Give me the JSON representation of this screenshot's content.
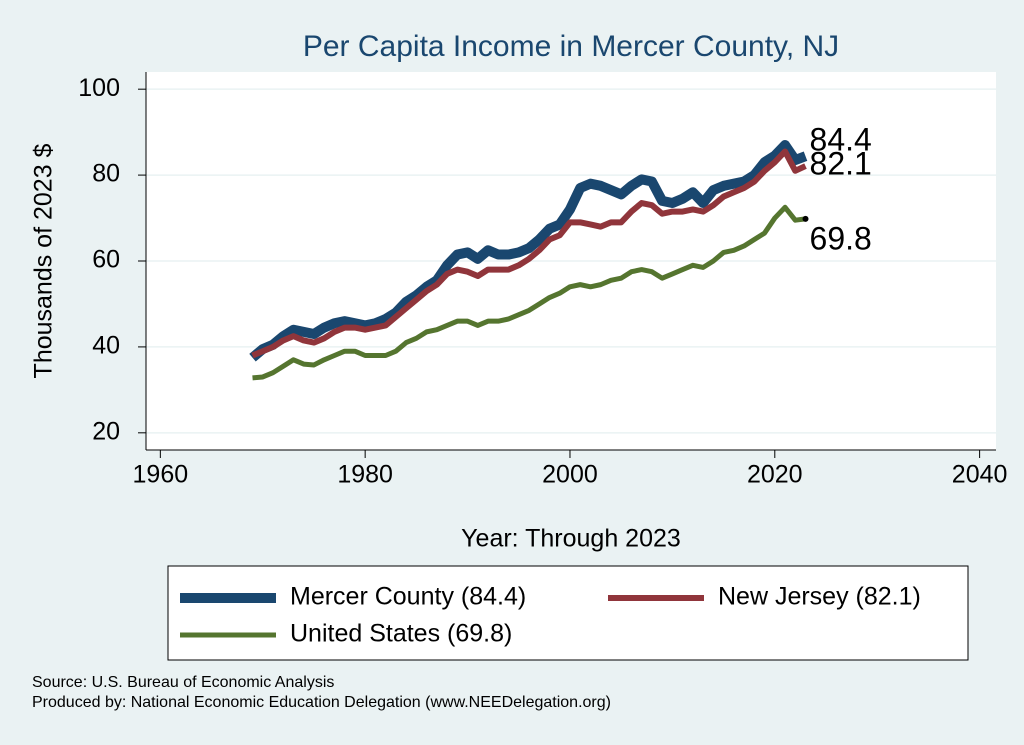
{
  "chart_data": {
    "type": "line",
    "title": "Per Capita Income in Mercer County, NJ",
    "x_label": "Year: Through 2023",
    "y_label": "Thousands of 2023 $",
    "source": "Source: U.S. Bureau of Economic Analysis",
    "produced_by": "Produced by: National Economic Education Delegation (www.NEEDelegation.org)",
    "x": [
      1969,
      1970,
      1971,
      1972,
      1973,
      1974,
      1975,
      1976,
      1977,
      1978,
      1979,
      1980,
      1981,
      1982,
      1983,
      1984,
      1985,
      1986,
      1987,
      1988,
      1989,
      1990,
      1991,
      1992,
      1993,
      1994,
      1995,
      1996,
      1997,
      1998,
      1999,
      2000,
      2001,
      2002,
      2003,
      2004,
      2005,
      2006,
      2007,
      2008,
      2009,
      2010,
      2011,
      2012,
      2013,
      2014,
      2015,
      2016,
      2017,
      2018,
      2019,
      2020,
      2021,
      2022,
      2023
    ],
    "series": [
      {
        "name": "Mercer County (84.4)",
        "color": "#1a476f",
        "width": 10,
        "values": [
          37.5,
          39.5,
          40.5,
          42.5,
          44,
          43.5,
          43,
          44.5,
          45.5,
          46,
          45.5,
          45,
          45.5,
          46.5,
          48,
          50.5,
          52,
          54,
          55.5,
          59,
          61.5,
          62,
          60.5,
          62.5,
          61.5,
          61.5,
          62,
          63,
          65,
          67.5,
          68.5,
          72,
          77,
          78,
          77.5,
          76.5,
          75.5,
          77.5,
          79,
          78.5,
          74,
          73.5,
          74.5,
          76,
          73.5,
          76.5,
          77.5,
          78,
          78.5,
          80,
          83,
          84.5,
          87,
          83.5,
          84.4
        ]
      },
      {
        "name": "New Jersey (82.1)",
        "color": "#90353b",
        "width": 6,
        "values": [
          38,
          39,
          40,
          41.5,
          42.5,
          41.5,
          41,
          42,
          43.5,
          44.5,
          44.5,
          44,
          44.5,
          45,
          47,
          49,
          51,
          53,
          54.5,
          57,
          58,
          57.5,
          56.5,
          58,
          58,
          58,
          59,
          60.5,
          62.5,
          65,
          66,
          69,
          69,
          68.5,
          68,
          69,
          69,
          71.5,
          73.5,
          73,
          71,
          71.5,
          71.5,
          72,
          71.5,
          73,
          75,
          76,
          77,
          78.5,
          81,
          83,
          85.5,
          81,
          82.1
        ]
      },
      {
        "name": "United States (69.8)",
        "color": "#55752f",
        "width": 5,
        "values": [
          32.8,
          33,
          34,
          35.5,
          37,
          36,
          35.8,
          37,
          38,
          39,
          39,
          38,
          38,
          38,
          39,
          41,
          42,
          43.5,
          44,
          45,
          46,
          46,
          45,
          46,
          46,
          46.5,
          47.5,
          48.5,
          50,
          51.5,
          52.5,
          54,
          54.5,
          54,
          54.5,
          55.5,
          56,
          57.5,
          58,
          57.5,
          56,
          57,
          58,
          59,
          58.5,
          60,
          62,
          62.5,
          63.5,
          65,
          66.5,
          70,
          72.5,
          69.5,
          69.8
        ]
      }
    ],
    "xlim": [
      1958.6,
      2041.6
    ],
    "ylim": [
      16,
      104
    ],
    "xticks": [
      1960,
      1980,
      2000,
      2020,
      2040
    ],
    "yticks": [
      20,
      40,
      60,
      80,
      100
    ],
    "grid": true
  }
}
